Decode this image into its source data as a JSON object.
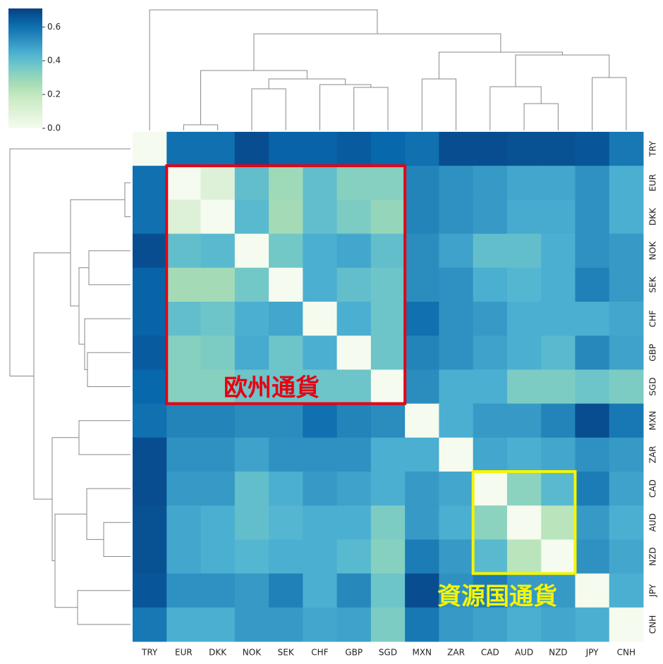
{
  "chart_data": {
    "type": "heatmap",
    "colormap": "GnBu",
    "categories": [
      "TRY",
      "EUR",
      "DKK",
      "NOK",
      "SEK",
      "CHF",
      "GBP",
      "SGD",
      "MXN",
      "ZAR",
      "CAD",
      "AUD",
      "NZD",
      "JPY",
      "CNH"
    ],
    "values": [
      [
        0,
        0.6,
        0.6,
        0.68,
        0.63,
        0.63,
        0.65,
        0.62,
        0.6,
        0.68,
        0.68,
        0.67,
        0.67,
        0.66,
        0.58
      ],
      [
        0.6,
        0,
        0.1,
        0.4,
        0.28,
        0.4,
        0.33,
        0.33,
        0.55,
        0.52,
        0.5,
        0.47,
        0.47,
        0.52,
        0.45
      ],
      [
        0.6,
        0.1,
        0,
        0.42,
        0.27,
        0.4,
        0.35,
        0.3,
        0.55,
        0.52,
        0.5,
        0.46,
        0.46,
        0.52,
        0.45
      ],
      [
        0.68,
        0.4,
        0.42,
        0,
        0.37,
        0.45,
        0.47,
        0.4,
        0.53,
        0.48,
        0.4,
        0.4,
        0.45,
        0.52,
        0.5
      ],
      [
        0.63,
        0.27,
        0.27,
        0.37,
        0,
        0.45,
        0.4,
        0.38,
        0.53,
        0.52,
        0.45,
        0.43,
        0.45,
        0.56,
        0.5
      ],
      [
        0.63,
        0.4,
        0.38,
        0.45,
        0.47,
        0,
        0.45,
        0.38,
        0.6,
        0.52,
        0.5,
        0.45,
        0.45,
        0.45,
        0.47
      ],
      [
        0.65,
        0.33,
        0.35,
        0.46,
        0.38,
        0.45,
        0,
        0.38,
        0.55,
        0.52,
        0.48,
        0.45,
        0.42,
        0.54,
        0.48
      ],
      [
        0.62,
        0.33,
        0.33,
        0.38,
        0.38,
        0.38,
        0.38,
        0,
        0.53,
        0.45,
        0.45,
        0.35,
        0.35,
        0.38,
        0.35
      ],
      [
        0.6,
        0.55,
        0.55,
        0.53,
        0.53,
        0.6,
        0.55,
        0.53,
        0,
        0.45,
        0.5,
        0.5,
        0.55,
        0.68,
        0.58
      ],
      [
        0.68,
        0.52,
        0.52,
        0.48,
        0.52,
        0.52,
        0.52,
        0.45,
        0.45,
        0,
        0.47,
        0.45,
        0.47,
        0.52,
        0.5
      ],
      [
        0.68,
        0.5,
        0.5,
        0.4,
        0.45,
        0.5,
        0.48,
        0.45,
        0.5,
        0.47,
        0,
        0.32,
        0.42,
        0.57,
        0.48
      ],
      [
        0.67,
        0.47,
        0.45,
        0.4,
        0.43,
        0.45,
        0.45,
        0.35,
        0.5,
        0.45,
        0.32,
        0,
        0.22,
        0.5,
        0.45
      ],
      [
        0.67,
        0.47,
        0.45,
        0.43,
        0.45,
        0.45,
        0.42,
        0.33,
        0.57,
        0.5,
        0.42,
        0.22,
        0,
        0.52,
        0.47
      ],
      [
        0.66,
        0.52,
        0.52,
        0.5,
        0.56,
        0.45,
        0.54,
        0.38,
        0.68,
        0.52,
        0.57,
        0.5,
        0.5,
        0,
        0.45
      ],
      [
        0.58,
        0.45,
        0.45,
        0.5,
        0.5,
        0.47,
        0.48,
        0.35,
        0.58,
        0.5,
        0.48,
        0.45,
        0.47,
        0.45,
        0
      ]
    ],
    "zlim": [
      0,
      0.71
    ],
    "zticks": [
      {
        "value": 0,
        "label": "0.0"
      },
      {
        "value": 0.2,
        "label": "0.2"
      },
      {
        "value": 0.4,
        "label": "0.4"
      },
      {
        "value": 0.6,
        "label": "0.6"
      }
    ],
    "annotations": [
      {
        "text": "欧州通貨",
        "color": "#e60012"
      },
      {
        "text": "資源国通貨",
        "color": "#f5f500"
      }
    ]
  }
}
